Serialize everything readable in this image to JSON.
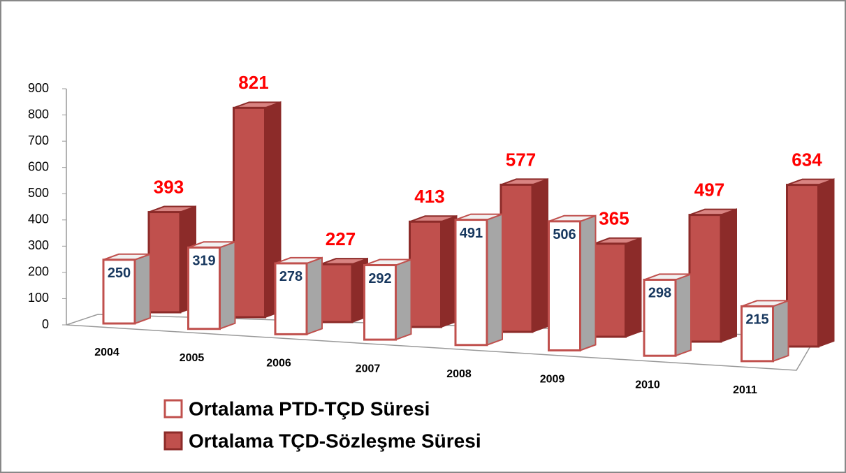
{
  "chart_data": {
    "type": "bar",
    "categories": [
      "2004",
      "2005",
      "2006",
      "2007",
      "2008",
      "2009",
      "2010",
      "2011"
    ],
    "series": [
      {
        "name": "Ortalama PTD-TÇD Süresi",
        "color": "#ffffff",
        "values": [
          250,
          319,
          278,
          292,
          491,
          506,
          298,
          215
        ]
      },
      {
        "name": "Ortalama TÇD-Sözleşme Süresi",
        "color": "#c0504d",
        "values": [
          393,
          821,
          227,
          413,
          577,
          365,
          497,
          634
        ]
      }
    ],
    "ylim": [
      0,
      900
    ],
    "yticks": [
      0,
      100,
      200,
      300,
      400,
      500,
      600,
      700,
      800,
      900
    ],
    "legend": "bottom"
  }
}
